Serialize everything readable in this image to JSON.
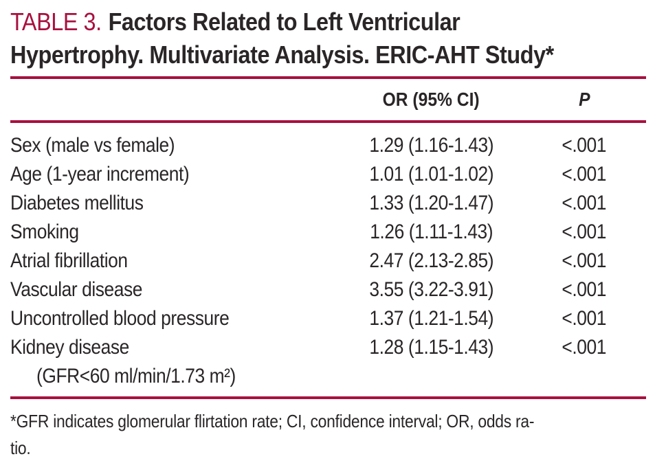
{
  "colors": {
    "accent_red": "#A8113F",
    "text": "#2A2627",
    "background": "#FFFFFF"
  },
  "title": {
    "label": "TABLE 3.",
    "rest_line1": "Factors Related to Left Ventricular",
    "line2": "Hypertrophy. Multivariate Analysis. ERIC-AHT Study*"
  },
  "table": {
    "header": {
      "factor": "",
      "or_ci": "OR (95% CI)",
      "p": "P"
    },
    "rows": [
      {
        "factor": "Sex (male vs female)",
        "or_ci": "1.29 (1.16-1.43)",
        "p": "<.001"
      },
      {
        "factor": "Age (1-year increment)",
        "or_ci": "1.01 (1.01-1.02)",
        "p": "<.001"
      },
      {
        "factor": "Diabetes mellitus",
        "or_ci": "1.33 (1.20-1.47)",
        "p": "<.001"
      },
      {
        "factor": "Smoking",
        "or_ci": "1.26 (1.11-1.43)",
        "p": "<.001"
      },
      {
        "factor": "Atrial fibrillation",
        "or_ci": "2.47 (2.13-2.85)",
        "p": "<.001"
      },
      {
        "factor": "Vascular disease",
        "or_ci": "3.55 (3.22-3.91)",
        "p": "<.001"
      },
      {
        "factor": "Uncontrolled blood pressure",
        "or_ci": "1.37 (1.21-1.54)",
        "p": "<.001"
      },
      {
        "factor": "Kidney disease",
        "factor_line2": "(GFR<60 ml/min/1.73 m²)",
        "or_ci": "1.28 (1.15-1.43)",
        "p": "<.001"
      }
    ]
  },
  "footnote": {
    "line1": "*GFR indicates glomerular flirtation rate; CI, confidence interval; OR, odds ra-",
    "line2": "tio."
  }
}
